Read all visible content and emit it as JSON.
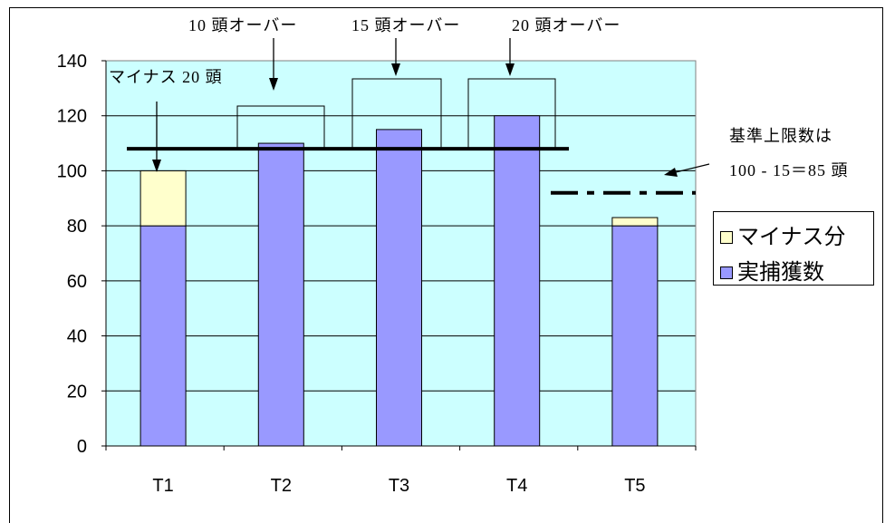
{
  "chart_data": {
    "type": "bar",
    "stacked": true,
    "categories": [
      "T1",
      "T2",
      "T3",
      "T4",
      "T5"
    ],
    "series": [
      {
        "name": "実捕獲数",
        "values": [
          80,
          110,
          115,
          120,
          80
        ],
        "color": "#9999FF"
      },
      {
        "name": "マイナス分",
        "values": [
          20,
          0,
          0,
          0,
          3
        ],
        "color": "#FFFFCC"
      }
    ],
    "ylim": [
      0,
      140
    ],
    "yticks": [
      0,
      20,
      40,
      60,
      80,
      100,
      120,
      140
    ],
    "grid": true,
    "legend": "right",
    "plot_background": "#CCFFFF",
    "reference_lines": [
      108,
      92
    ]
  },
  "annotations": {
    "over_10": "10 頭オーバー",
    "over_15": "15 頭オーバー",
    "over_20": "20 頭オーバー",
    "minus_20": "マイナス 20 頭",
    "limit_label": "基準上限数は",
    "limit_formula": "100 - 15＝85 頭"
  }
}
